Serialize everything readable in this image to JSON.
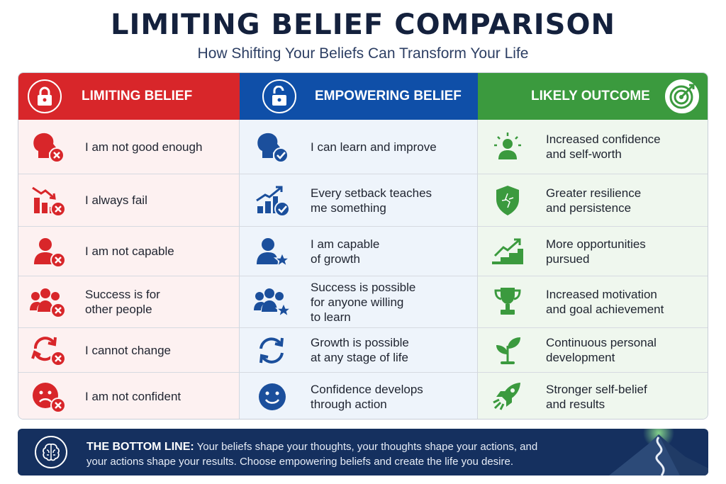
{
  "title": "LIMITING BELIEF COMPARISON",
  "subtitle": "How Shifting Your Beliefs Can Transform Your Life",
  "colors": {
    "limiting": "#d8262a",
    "empowering": "#0f4fa8",
    "outcome": "#3b9a3e",
    "banner": "#15305f"
  },
  "headers": {
    "limiting": {
      "label": "LIMITING BELIEF",
      "icon": "padlock-closed-icon"
    },
    "empowering": {
      "label": "EMPOWERING BELIEF",
      "icon": "padlock-open-icon"
    },
    "outcome": {
      "label": "LIKELY OUTCOME",
      "icon": "target-icon"
    }
  },
  "rows": [
    {
      "limiting": {
        "text": "I am not good enough",
        "icon": "head-x-icon"
      },
      "empowering": {
        "text": "I can learn and improve",
        "icon": "head-check-icon"
      },
      "outcome": {
        "text": "Increased confidence\nand self-worth",
        "icon": "glowing-person-icon"
      }
    },
    {
      "limiting": {
        "text": "I always fail",
        "icon": "declining-chart-icon"
      },
      "empowering": {
        "text": "Every setback teaches\nme something",
        "icon": "rising-chart-icon"
      },
      "outcome": {
        "text": "Greater resilience\nand persistence",
        "icon": "shield-icon"
      }
    },
    {
      "limiting": {
        "text": "I am not capable",
        "icon": "person-x-icon"
      },
      "empowering": {
        "text": "I am capable\nof growth",
        "icon": "person-star-icon"
      },
      "outcome": {
        "text": "More opportunities\npursued",
        "icon": "stairs-arrow-icon"
      }
    },
    {
      "limiting": {
        "text": "Success is for\nother people",
        "icon": "group-x-icon"
      },
      "empowering": {
        "text": "Success is possible\nfor anyone willing\nto learn",
        "icon": "group-star-icon"
      },
      "outcome": {
        "text": "Increased motivation\nand goal achievement",
        "icon": "trophy-icon"
      }
    },
    {
      "limiting": {
        "text": "I cannot change",
        "icon": "cycle-x-icon"
      },
      "empowering": {
        "text": "Growth is possible\nat any stage of life",
        "icon": "cycle-arrows-icon"
      },
      "outcome": {
        "text": "Continuous personal\ndevelopment",
        "icon": "sprout-icon"
      }
    },
    {
      "limiting": {
        "text": "I am not confident",
        "icon": "sad-face-x-icon"
      },
      "empowering": {
        "text": "Confidence develops\nthrough action",
        "icon": "smiley-face-icon"
      },
      "outcome": {
        "text": "Stronger self-belief\nand results",
        "icon": "rocket-icon"
      }
    }
  ],
  "bottom": {
    "label": "THE BOTTOM LINE:",
    "text": "Your beliefs shape your thoughts, your thoughts shape your actions, and your actions shape your results. Choose empowering beliefs and create the life you desire.",
    "icon": "brain-icon",
    "decoration": "mountain-flag-icon"
  }
}
